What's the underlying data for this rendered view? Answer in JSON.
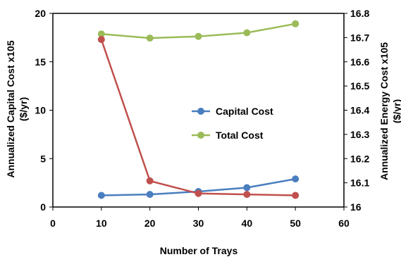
{
  "chart_data": {
    "type": "line",
    "title": "",
    "xlabel": "Number of Trays",
    "ylabel_left_line1": "Annualized Capital Cost x105",
    "ylabel_left_line2": "($/yr)",
    "ylabel_right_line1": "Annualized Energy Cost x105",
    "ylabel_right_line2": "($/yr)",
    "xlim": [
      0,
      60
    ],
    "xticks": [
      "0",
      "10",
      "20",
      "30",
      "40",
      "50",
      "60"
    ],
    "ylim_left": [
      0,
      20
    ],
    "yticks_left": [
      "0",
      "5",
      "10",
      "15",
      "20"
    ],
    "ylim_right": [
      16,
      16.8
    ],
    "yticks_right": [
      "16",
      "16.1",
      "16.2",
      "16.3",
      "16.4",
      "16.5",
      "16.6",
      "16.7",
      "16.8"
    ],
    "grid": false,
    "legend_position": "center",
    "series": [
      {
        "name": "Capital Cost",
        "axis": "left",
        "color": "#4a7ebf",
        "x": [
          10,
          20,
          30,
          40,
          50
        ],
        "y": [
          1.2,
          1.3,
          1.6,
          2.0,
          2.9
        ]
      },
      {
        "name": "Total Cost",
        "axis": "right",
        "color": "#9bbb59",
        "x": [
          10,
          20,
          30,
          40,
          50
        ],
        "y": [
          16.715,
          16.698,
          16.705,
          16.72,
          16.757
        ]
      },
      {
        "name": "",
        "axis": "left",
        "color": "#c0504d",
        "x": [
          10,
          20,
          30,
          40,
          50
        ],
        "y": [
          17.3,
          2.7,
          1.4,
          1.3,
          1.2
        ]
      }
    ]
  }
}
